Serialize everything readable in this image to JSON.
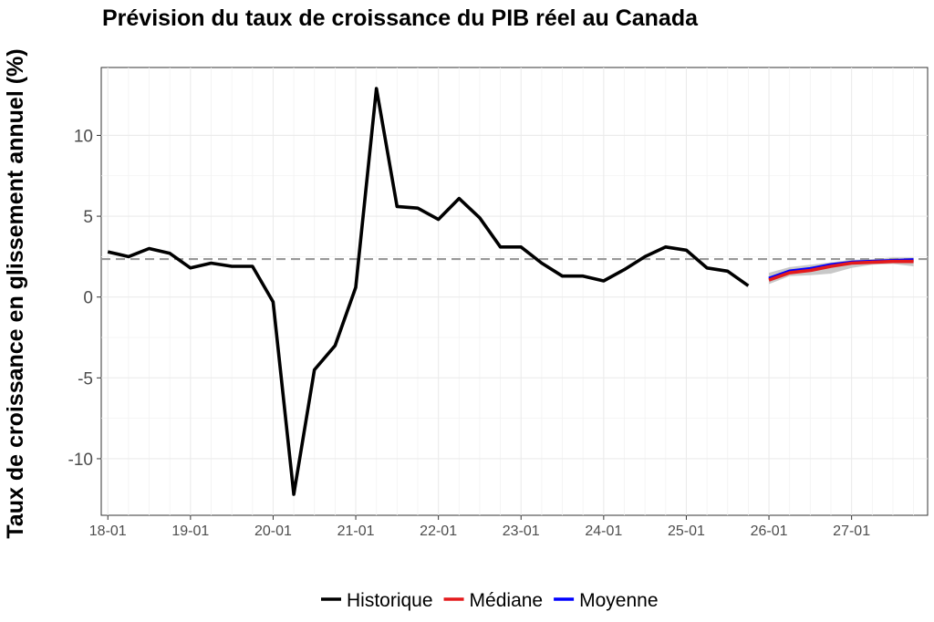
{
  "chart_data": {
    "type": "line",
    "title": "Prévision du taux de croissance du PIB réel au Canada",
    "xlabel": "",
    "ylabel": "Taux de croissance en glissement annuel (%)",
    "x_tick_labels": [
      "18-01",
      "19-01",
      "20-01",
      "21-01",
      "22-01",
      "23-01",
      "24-01",
      "25-01",
      "26-01",
      "27-01"
    ],
    "y_ticks": [
      -10,
      -5,
      0,
      5,
      10
    ],
    "ylim": [
      -13.5,
      14.2
    ],
    "grid": true,
    "legend_position": "bottom",
    "reference_line": {
      "y": 2.35,
      "style": "dashed",
      "color": "#999999"
    },
    "series": [
      {
        "name": "Historique",
        "color": "#000000",
        "x": [
          "2018-01",
          "2018-04",
          "2018-07",
          "2018-10",
          "2019-01",
          "2019-04",
          "2019-07",
          "2019-10",
          "2020-01",
          "2020-04",
          "2020-07",
          "2020-10",
          "2021-01",
          "2021-04",
          "2021-07",
          "2021-10",
          "2022-01",
          "2022-04",
          "2022-07",
          "2022-10",
          "2023-01",
          "2023-04",
          "2023-07",
          "2023-10",
          "2024-01",
          "2024-04",
          "2024-07",
          "2024-10",
          "2025-01",
          "2025-04",
          "2025-07",
          "2025-10"
        ],
        "values": [
          2.8,
          2.5,
          3.0,
          2.7,
          1.8,
          2.1,
          1.9,
          1.9,
          -0.3,
          -12.2,
          -4.5,
          -3.0,
          0.6,
          12.9,
          5.6,
          5.5,
          4.8,
          6.1,
          4.9,
          3.1,
          3.1,
          2.1,
          1.3,
          1.3,
          1.0,
          1.7,
          2.5,
          3.1,
          2.9,
          1.8,
          1.6,
          0.7
        ]
      },
      {
        "name": "Médiane",
        "color": "#e41a1c",
        "x": [
          "2026-01",
          "2026-04",
          "2026-07",
          "2026-10",
          "2027-01",
          "2027-04",
          "2027-07",
          "2027-10"
        ],
        "values": [
          1.05,
          1.5,
          1.65,
          1.9,
          2.1,
          2.15,
          2.2,
          2.2
        ]
      },
      {
        "name": "Moyenne",
        "color": "#0000ff",
        "x": [
          "2026-01",
          "2026-04",
          "2026-07",
          "2026-10",
          "2027-01",
          "2027-04",
          "2027-07",
          "2027-10"
        ],
        "values": [
          1.15,
          1.6,
          1.75,
          2.0,
          2.15,
          2.2,
          2.25,
          2.3
        ]
      }
    ],
    "band": {
      "color": "#bebebe",
      "x": [
        "2026-01",
        "2026-04",
        "2026-07",
        "2026-10",
        "2027-01",
        "2027-04",
        "2027-07",
        "2027-10"
      ],
      "lower": [
        0.8,
        1.3,
        1.35,
        1.45,
        1.8,
        2.0,
        2.05,
        1.9
      ],
      "upper": [
        1.5,
        1.85,
        2.0,
        2.15,
        2.3,
        2.35,
        2.45,
        2.45
      ]
    }
  }
}
